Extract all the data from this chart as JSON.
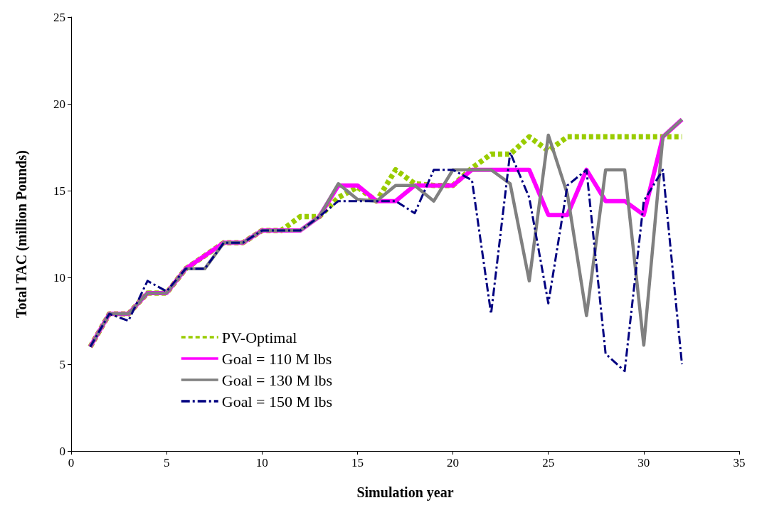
{
  "chart_data": {
    "type": "line",
    "xlabel": "Simulation year",
    "ylabel": "Total TAC (million Pounds)",
    "x": [
      1,
      2,
      3,
      4,
      5,
      6,
      7,
      8,
      9,
      10,
      11,
      12,
      13,
      14,
      15,
      16,
      17,
      18,
      19,
      20,
      21,
      22,
      23,
      24,
      25,
      26,
      27,
      28,
      29,
      30,
      31,
      32
    ],
    "series": [
      {
        "name": "PV-Optimal",
        "color": "#99cc00",
        "line_style": "dotted",
        "values": [
          6.0,
          7.9,
          7.9,
          9.1,
          9.1,
          10.5,
          11.25,
          12.0,
          12.0,
          12.7,
          12.7,
          13.5,
          13.5,
          14.6,
          15.2,
          14.4,
          16.2,
          15.4,
          15.3,
          15.3,
          16.3,
          17.1,
          17.1,
          18.1,
          17.3,
          18.1,
          18.1,
          18.1,
          18.1,
          18.1,
          18.1,
          18.1
        ]
      },
      {
        "name": "Goal = 110 M lbs",
        "color": "#ff00ff",
        "line_style": "solid",
        "values": [
          6.0,
          7.9,
          7.9,
          9.1,
          9.1,
          10.5,
          11.25,
          12.0,
          12.0,
          12.7,
          12.7,
          12.7,
          13.5,
          15.3,
          15.3,
          14.4,
          14.4,
          15.3,
          15.3,
          15.3,
          16.2,
          16.2,
          16.2,
          16.2,
          13.6,
          13.6,
          16.2,
          14.4,
          14.4,
          13.6,
          18.1,
          19.1
        ]
      },
      {
        "name": "Goal = 130 M lbs",
        "color": "#808080",
        "line_style": "solid",
        "values": [
          6.0,
          7.9,
          7.9,
          9.1,
          9.1,
          10.5,
          10.5,
          12.0,
          12.0,
          12.7,
          12.7,
          12.7,
          13.5,
          15.4,
          14.5,
          14.4,
          15.3,
          15.3,
          14.4,
          16.2,
          16.2,
          16.2,
          15.4,
          9.8,
          18.2,
          14.8,
          7.8,
          16.2,
          16.2,
          6.1,
          18.1,
          19.1
        ]
      },
      {
        "name": "Goal = 150 M lbs",
        "color": "#000080",
        "line_style": "dashed",
        "values": [
          6.0,
          7.9,
          7.5,
          9.8,
          9.2,
          10.5,
          10.5,
          12.0,
          12.0,
          12.7,
          12.7,
          12.7,
          13.5,
          14.4,
          14.4,
          14.4,
          14.4,
          13.7,
          16.2,
          16.2,
          15.6,
          7.9,
          17.2,
          14.6,
          8.5,
          15.3,
          16.2,
          5.6,
          4.6,
          14.4,
          16.2,
          5.0
        ]
      }
    ],
    "xlim": [
      0,
      35
    ],
    "xticks": [
      0,
      5,
      10,
      15,
      20,
      25,
      30,
      35
    ],
    "ylim": [
      0,
      25
    ],
    "yticks": [
      0,
      5,
      10,
      15,
      20,
      25
    ],
    "grid": false,
    "legend": "bottom left",
    "marker": "none"
  }
}
